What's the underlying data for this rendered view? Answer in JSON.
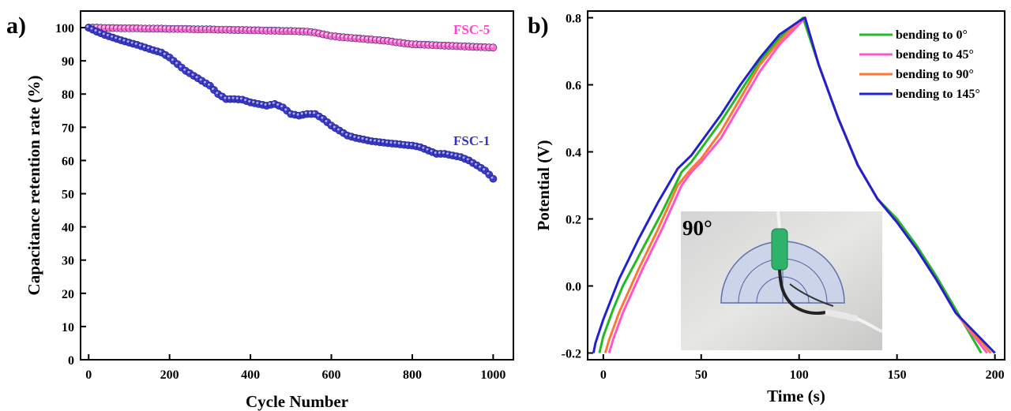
{
  "chart_data": [
    {
      "panel": "a)",
      "type": "scatter",
      "xlabel": "Cycle Number",
      "ylabel": "Capacitance retention rate (%)",
      "xlim": [
        -20,
        1050
      ],
      "ylim": [
        0,
        105
      ],
      "xticks": [
        0,
        200,
        400,
        600,
        800,
        1000
      ],
      "yticks": [
        0,
        10,
        20,
        30,
        40,
        50,
        60,
        70,
        80,
        90,
        100
      ],
      "grid": false,
      "series": [
        {
          "name": "FSC-5",
          "color": "#ff66cc",
          "x": [
            0,
            20,
            40,
            60,
            80,
            100,
            120,
            140,
            160,
            180,
            200,
            220,
            240,
            260,
            280,
            300,
            320,
            340,
            360,
            380,
            400,
            420,
            440,
            460,
            480,
            500,
            520,
            540,
            560,
            580,
            600,
            620,
            640,
            660,
            680,
            700,
            720,
            740,
            760,
            780,
            800,
            820,
            840,
            860,
            880,
            900,
            920,
            940,
            960,
            980,
            1000
          ],
          "y": [
            100,
            100,
            99.9,
            99.9,
            99.8,
            99.8,
            99.8,
            99.7,
            99.7,
            99.7,
            99.6,
            99.6,
            99.6,
            99.5,
            99.5,
            99.5,
            99.4,
            99.4,
            99.3,
            99.3,
            99.2,
            99.2,
            99.1,
            99.1,
            99.0,
            99.0,
            98.9,
            98.8,
            98.5,
            98.0,
            97.5,
            97.2,
            97.0,
            96.8,
            96.6,
            96.4,
            96.2,
            96.0,
            95.6,
            95.3,
            95.0,
            94.9,
            94.8,
            94.7,
            94.6,
            94.5,
            94.4,
            94.3,
            94.2,
            94.1,
            94.0
          ]
        },
        {
          "name": "FSC-1",
          "color": "#3333cc",
          "x": [
            0,
            20,
            40,
            60,
            80,
            100,
            120,
            140,
            160,
            180,
            200,
            220,
            240,
            260,
            280,
            300,
            320,
            340,
            360,
            380,
            400,
            420,
            440,
            460,
            480,
            500,
            520,
            540,
            560,
            580,
            600,
            620,
            640,
            660,
            680,
            700,
            720,
            740,
            760,
            780,
            800,
            820,
            840,
            860,
            880,
            900,
            920,
            940,
            960,
            980,
            1000
          ],
          "y": [
            100,
            98.8,
            97.8,
            97.0,
            96.2,
            95.5,
            94.8,
            94.0,
            93.2,
            92.5,
            91.0,
            89.0,
            87.0,
            85.5,
            84.0,
            82.5,
            80.0,
            78.5,
            78.5,
            78.3,
            77.5,
            77.0,
            76.5,
            77.0,
            76.0,
            74.0,
            73.5,
            74.0,
            74.0,
            72.5,
            70.5,
            69.0,
            67.5,
            66.8,
            66.3,
            65.8,
            65.5,
            65.2,
            65.0,
            64.7,
            64.5,
            64.0,
            63.0,
            62.0,
            62.0,
            61.5,
            61.0,
            60.0,
            58.5,
            57.0,
            54.5
          ]
        }
      ],
      "annotations": [
        "FSC-5",
        "FSC-1"
      ]
    },
    {
      "panel": "b)",
      "type": "line",
      "xlabel": "Time (s)",
      "ylabel": "Potential (V)",
      "xlim": [
        -8,
        205
      ],
      "ylim": [
        -0.22,
        0.82
      ],
      "xticks": [
        0,
        50,
        100,
        150,
        200
      ],
      "yticks": [
        "-0.2",
        "0.0",
        "0.2",
        "0.4",
        "0.6",
        "0.8"
      ],
      "ytick_values": [
        -0.2,
        0.0,
        0.2,
        0.4,
        0.6,
        0.8
      ],
      "grid": false,
      "legend_position": "top-right",
      "series": [
        {
          "name": "bending to 0°",
          "color": "#22bb22",
          "x": [
            -2,
            0,
            5,
            10,
            20,
            30,
            40,
            45,
            50,
            60,
            70,
            80,
            90,
            100,
            102,
            110,
            120,
            130,
            140,
            150,
            160,
            170,
            180,
            193
          ],
          "y": [
            -0.2,
            -0.15,
            -0.07,
            0.0,
            0.11,
            0.22,
            0.34,
            0.37,
            0.41,
            0.49,
            0.58,
            0.67,
            0.74,
            0.79,
            0.8,
            0.66,
            0.5,
            0.36,
            0.26,
            0.2,
            0.12,
            0.03,
            -0.07,
            -0.2
          ]
        },
        {
          "name": "bending to 45°",
          "color": "#ff55cc",
          "x": [
            3,
            5,
            10,
            20,
            30,
            40,
            45,
            50,
            60,
            70,
            80,
            90,
            100,
            103,
            110,
            120,
            130,
            140,
            150,
            160,
            170,
            180,
            196
          ],
          "y": [
            -0.2,
            -0.16,
            -0.08,
            0.05,
            0.17,
            0.3,
            0.34,
            0.37,
            0.44,
            0.54,
            0.64,
            0.72,
            0.78,
            0.8,
            0.66,
            0.5,
            0.36,
            0.26,
            0.19,
            0.11,
            0.02,
            -0.08,
            -0.2
          ]
        },
        {
          "name": "bending to 90°",
          "color": "#ff7733",
          "x": [
            1,
            3,
            8,
            18,
            28,
            38,
            45,
            50,
            60,
            70,
            80,
            90,
            100,
            103,
            110,
            120,
            130,
            140,
            150,
            160,
            170,
            180,
            198
          ],
          "y": [
            -0.2,
            -0.16,
            -0.08,
            0.05,
            0.17,
            0.3,
            0.35,
            0.38,
            0.46,
            0.56,
            0.66,
            0.73,
            0.79,
            0.8,
            0.66,
            0.5,
            0.36,
            0.26,
            0.19,
            0.11,
            0.02,
            -0.08,
            -0.2
          ]
        },
        {
          "name": "bending to 145°",
          "color": "#2222cc",
          "x": [
            -5,
            -4,
            0,
            8,
            18,
            28,
            38,
            45,
            50,
            60,
            70,
            80,
            90,
            100,
            103,
            110,
            120,
            130,
            140,
            150,
            160,
            170,
            180,
            200
          ],
          "y": [
            -0.2,
            -0.17,
            -0.1,
            0.02,
            0.14,
            0.25,
            0.35,
            0.39,
            0.43,
            0.51,
            0.6,
            0.68,
            0.75,
            0.79,
            0.8,
            0.66,
            0.5,
            0.36,
            0.26,
            0.19,
            0.11,
            0.02,
            -0.08,
            -0.2
          ]
        }
      ],
      "inset": {
        "label": "90°"
      }
    }
  ]
}
